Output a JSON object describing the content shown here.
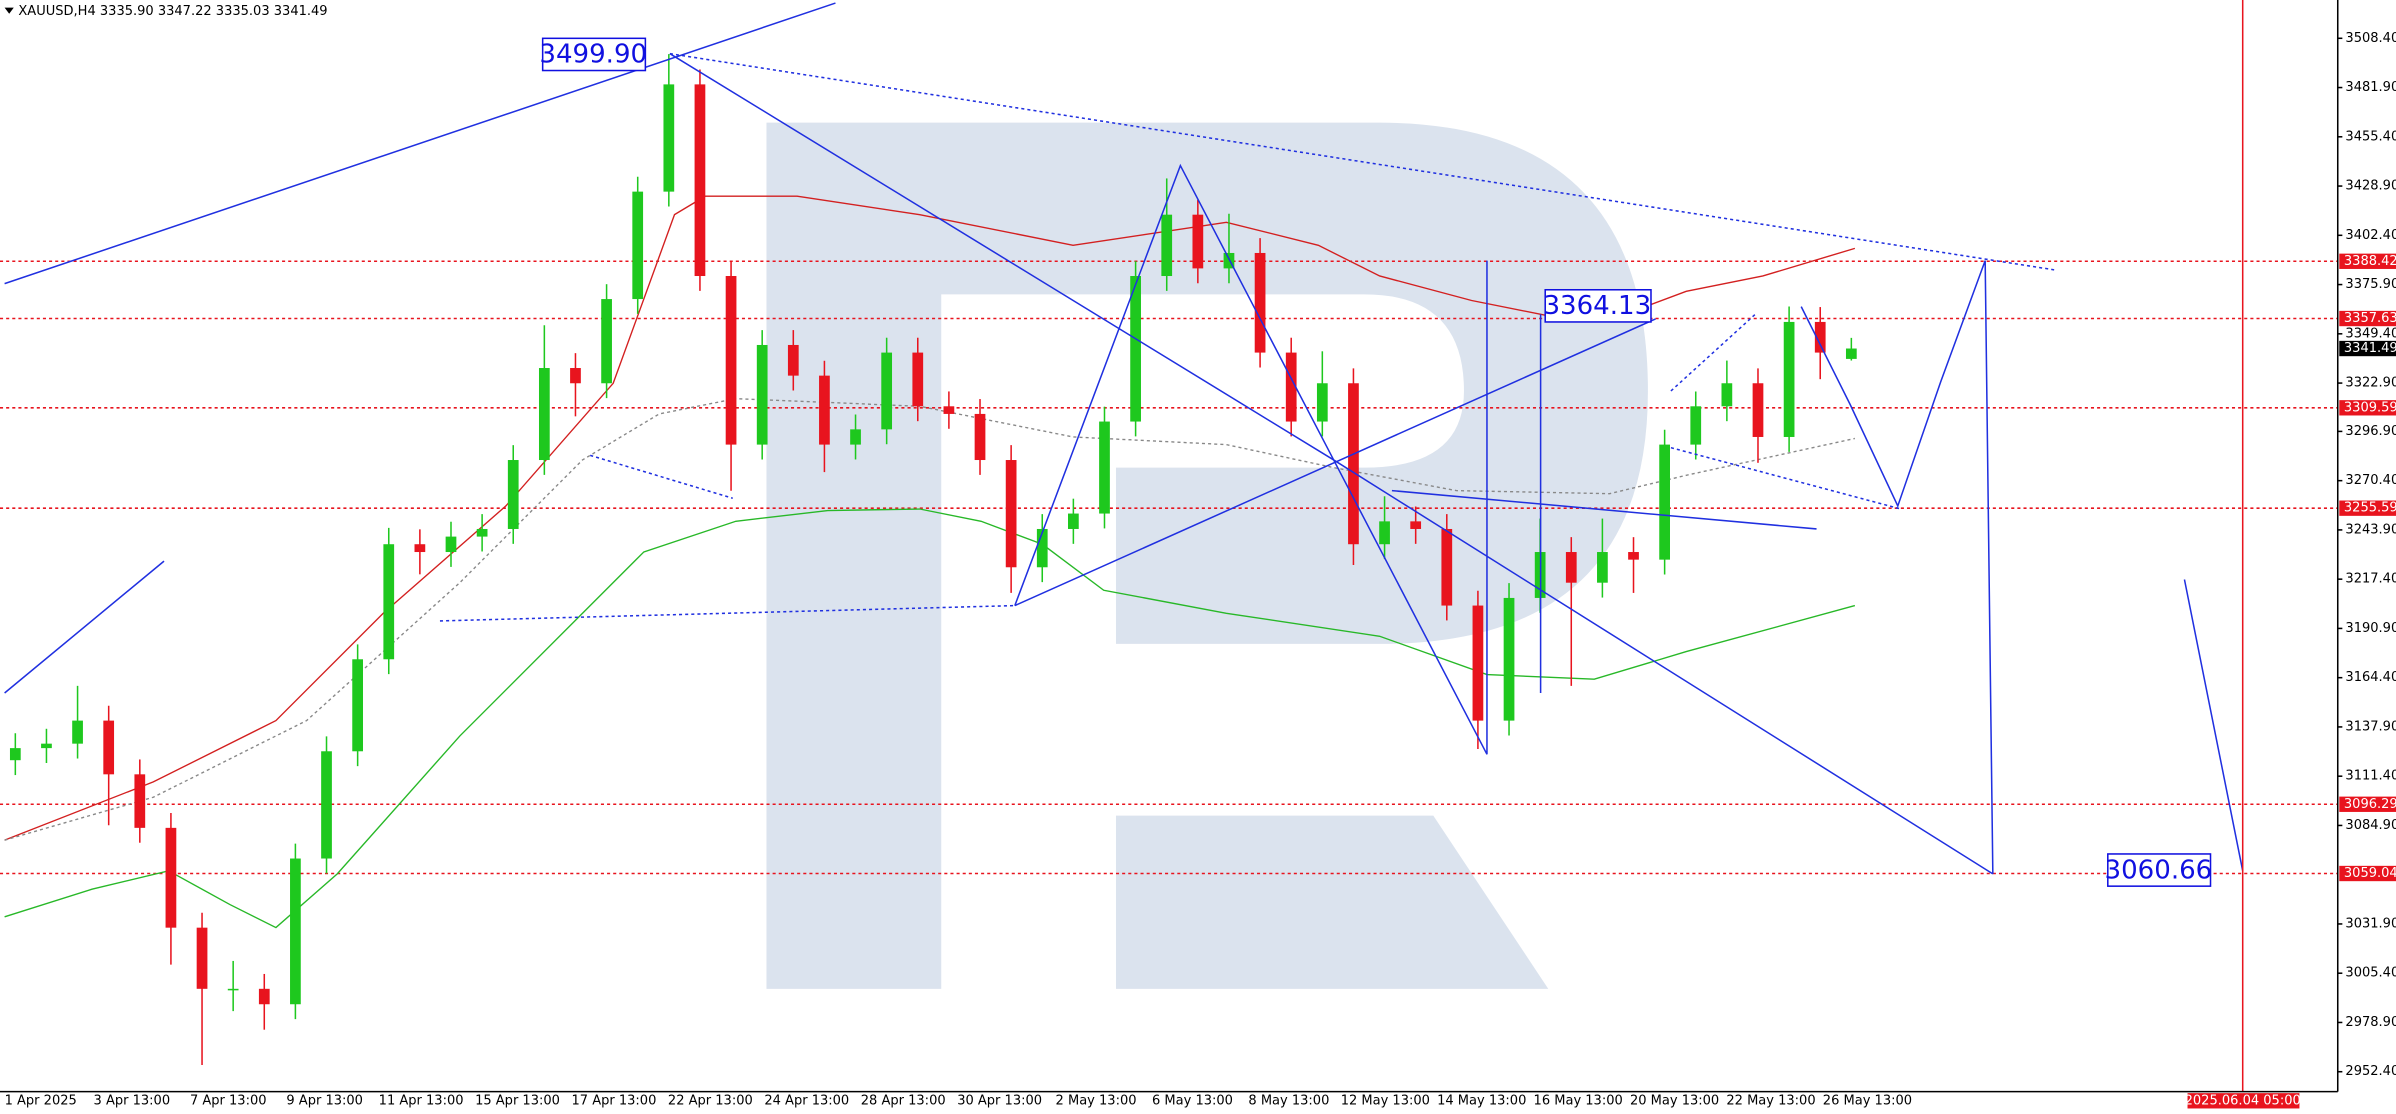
{
  "chart_data": {
    "type": "candlestick",
    "title": "XAUUSD,H4  3335.90 3347.22 3335.03 3341.49",
    "up_color": "#1ec81e",
    "down_color": "#e8141e",
    "level_color": "#e8141e",
    "ylim": [
      2941.7,
      3529.0
    ],
    "yticks": [
      {
        "value": 3508.4,
        "label": "3508.40"
      },
      {
        "value": 3481.9,
        "label": "3481.90"
      },
      {
        "value": 3455.4,
        "label": "3455.40"
      },
      {
        "value": 3428.9,
        "label": "3428.90"
      },
      {
        "value": 3402.4,
        "label": "3402.40"
      },
      {
        "value": 3375.9,
        "label": "3375.90"
      },
      {
        "value": 3349.4,
        "label": "3349.40"
      },
      {
        "value": 3322.9,
        "label": "3322.90"
      },
      {
        "value": 3296.9,
        "label": "3296.90"
      },
      {
        "value": 3270.4,
        "label": "3270.40"
      },
      {
        "value": 3243.9,
        "label": "3243.90"
      },
      {
        "value": 3217.4,
        "label": "3217.40"
      },
      {
        "value": 3190.9,
        "label": "3190.90"
      },
      {
        "value": 3164.4,
        "label": "3164.40"
      },
      {
        "value": 3137.9,
        "label": "3137.90"
      },
      {
        "value": 3111.4,
        "label": "3111.40"
      },
      {
        "value": 3084.9,
        "label": "3084.90"
      },
      {
        "value": 3031.9,
        "label": "3031.90"
      },
      {
        "value": 3005.4,
        "label": "3005.40"
      },
      {
        "value": 2978.9,
        "label": "2978.90"
      },
      {
        "value": 2952.4,
        "label": "2952.40"
      }
    ],
    "x_labels": [
      "1 Apr 2025",
      "3 Apr 13:00",
      "7 Apr 13:00",
      "9 Apr 13:00",
      "11 Apr 13:00",
      "15 Apr 13:00",
      "17 Apr 13:00",
      "22 Apr 13:00",
      "24 Apr 13:00",
      "28 Apr 13:00",
      "30 Apr 13:00",
      "2 May 13:00",
      "6 May 13:00",
      "8 May 13:00",
      "12 May 13:00",
      "14 May 13:00",
      "16 May 13:00",
      "20 May 13:00",
      "22 May 13:00",
      "26 May 13:00"
    ],
    "open": [
      3120.0,
      3126.5,
      3128.9,
      3141.3,
      3112.4,
      3083.6,
      3029.9,
      2997.0,
      2997.0,
      2988.7,
      3067.1,
      3124.8,
      3174.3,
      3236.2,
      3232.0,
      3240.3,
      3244.4,
      3281.5,
      3331.0,
      3322.8,
      3368.1,
      3425.9,
      3483.6,
      3380.5,
      3289.8,
      3343.4,
      3326.9,
      3289.8,
      3298.0,
      3339.3,
      3310.4,
      3306.3,
      3281.5,
      3223.8,
      3244.4,
      3252.7,
      3302.2,
      3380.5,
      3413.5,
      3384.6,
      3392.9,
      3339.3,
      3302.2,
      3322.8,
      3236.2,
      3248.5,
      3244.4,
      3203.2,
      3141.3,
      3207.3,
      3232.0,
      3215.5,
      3232.0,
      3227.9,
      3289.8,
      3310.4,
      3322.8,
      3293.9,
      3355.8,
      3335.9
    ],
    "high": [
      3134.5,
      3136.9,
      3160.0,
      3149.3,
      3120.4,
      3091.6,
      3037.9,
      3012.0,
      3005.0,
      3075.1,
      3132.8,
      3182.3,
      3245.0,
      3244.2,
      3248.3,
      3252.4,
      3289.5,
      3354.0,
      3339.0,
      3376.1,
      3433.9,
      3499.9,
      3491.6,
      3388.5,
      3351.4,
      3351.4,
      3334.9,
      3306.0,
      3347.3,
      3347.3,
      3318.4,
      3314.3,
      3289.5,
      3252.4,
      3260.7,
      3310.2,
      3388.5,
      3433.0,
      3421.5,
      3414.0,
      3400.9,
      3347.3,
      3340.0,
      3330.8,
      3262.0,
      3256.5,
      3252.4,
      3211.2,
      3215.3,
      3250.0,
      3240.0,
      3250.0,
      3240.0,
      3297.8,
      3318.4,
      3335.0,
      3330.8,
      3364.1,
      3363.8,
      3347.22
    ],
    "low": [
      3112.0,
      3118.5,
      3120.9,
      3085.0,
      3075.6,
      3010.0,
      2956.0,
      2985.0,
      2975.0,
      2980.7,
      3059.1,
      3116.8,
      3166.3,
      3220.0,
      3224.0,
      3232.3,
      3236.4,
      3273.5,
      3305.0,
      3314.8,
      3360.1,
      3417.9,
      3372.5,
      3265.0,
      3281.8,
      3318.9,
      3275.0,
      3281.8,
      3290.0,
      3302.4,
      3298.3,
      3273.5,
      3210.0,
      3215.8,
      3236.4,
      3244.7,
      3294.2,
      3372.5,
      3376.6,
      3376.6,
      3331.3,
      3294.2,
      3294.2,
      3225.0,
      3228.2,
      3236.4,
      3195.2,
      3126.0,
      3133.3,
      3199.3,
      3160.0,
      3207.5,
      3210.0,
      3219.9,
      3281.8,
      3302.4,
      3280.0,
      3285.9,
      3325.0,
      3335.03
    ],
    "close": [
      3126.5,
      3128.9,
      3141.3,
      3112.4,
      3083.6,
      3029.9,
      2997.0,
      2997.0,
      2988.7,
      3067.1,
      3124.8,
      3174.3,
      3236.2,
      3232.0,
      3240.3,
      3244.4,
      3281.5,
      3331.0,
      3322.8,
      3368.1,
      3425.9,
      3483.6,
      3380.5,
      3289.8,
      3343.4,
      3326.9,
      3289.8,
      3298.0,
      3339.3,
      3310.4,
      3306.3,
      3281.5,
      3223.8,
      3244.4,
      3252.7,
      3302.2,
      3380.5,
      3413.5,
      3384.6,
      3392.9,
      3339.3,
      3302.2,
      3322.8,
      3236.2,
      3248.5,
      3244.4,
      3203.2,
      3141.3,
      3207.3,
      3232.0,
      3215.5,
      3232.0,
      3227.9,
      3289.8,
      3310.4,
      3322.8,
      3293.9,
      3355.8,
      3339.3,
      3341.49
    ],
    "levels": [
      3388.42,
      3357.63,
      3309.59,
      3255.59,
      3096.29,
      3059.04
    ],
    "current_price": 3341.49,
    "annotations": [
      "3499.90",
      "3364.13",
      "3060.66"
    ],
    "time_marker": "2025.06.04 05:00"
  }
}
